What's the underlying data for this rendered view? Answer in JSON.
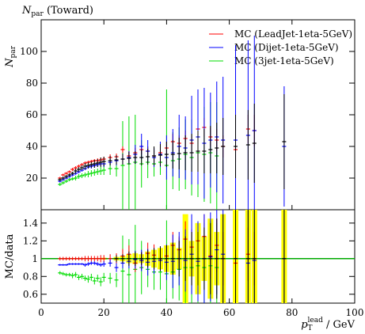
{
  "plot_title": "N",
  "plot_title_sub": "par",
  "plot_title_suffix": " (Toward)",
  "main_ylabel": "N",
  "main_ylabel_sub": "par",
  "ratio_ylabel": "MC/data",
  "xlabel_p": "p",
  "xlabel_sub": "T",
  "xlabel_sup": "lead",
  "xlabel_unit": " / GeV",
  "colors": {
    "data": "#000000",
    "leadjet": "#ff0000",
    "dijet": "#0000ff",
    "threejet": "#00dd00",
    "band": "#ffff00",
    "ratio_ref": "#00aa00"
  },
  "chart_data": [
    {
      "type": "scatter",
      "name": "main",
      "xlim": [
        0,
        100
      ],
      "ylim": [
        0,
        120
      ],
      "x_ticks": [
        0,
        20,
        40,
        60,
        80,
        100
      ],
      "y_ticks": [
        20,
        40,
        60,
        80,
        100
      ],
      "y_tick_labels": [
        "20",
        "40",
        "60",
        "80",
        "100"
      ],
      "legend_position": "top-right",
      "legend": [
        {
          "key": "leadjet",
          "label": "MC (LeadJet-1eta-5GeV)"
        },
        {
          "key": "dijet",
          "label": "MC (Dijet-1eta-5GeV)"
        },
        {
          "key": "threejet",
          "label": "MC (3jet-1eta-5GeV)"
        }
      ],
      "series": [
        {
          "key": "data",
          "x": [
            6,
            7,
            8,
            9,
            10,
            11,
            12,
            13,
            14,
            15,
            16,
            17,
            18,
            19,
            20,
            22,
            24,
            26,
            28,
            30,
            32,
            34,
            36,
            38,
            40,
            42,
            44,
            46,
            48,
            50,
            52,
            54,
            56,
            58,
            62,
            66,
            68,
            77.5
          ],
          "y": [
            19,
            20,
            21,
            22,
            23,
            24.5,
            25.5,
            26.5,
            27.5,
            28,
            28.5,
            29,
            29.5,
            30,
            30.5,
            31,
            31.5,
            32,
            32.5,
            33,
            33,
            33.5,
            34,
            34.5,
            35,
            35,
            35.5,
            36,
            36,
            37,
            37,
            38,
            39,
            40,
            40,
            41,
            42,
            43
          ],
          "err": [
            1,
            1,
            1,
            1,
            1,
            1.5,
            1.5,
            1.5,
            2,
            2,
            2,
            2.5,
            2.5,
            3,
            3,
            3,
            3,
            3.5,
            4,
            4,
            5,
            5,
            6,
            7,
            8,
            9,
            10,
            11,
            12,
            13,
            14,
            15,
            16,
            18,
            20,
            22,
            25,
            30
          ]
        },
        {
          "key": "leadjet",
          "x": [
            6,
            7,
            8,
            9,
            10,
            11,
            12,
            13,
            14,
            15,
            16,
            17,
            18,
            19,
            20,
            22,
            24,
            26,
            28,
            30,
            32,
            34,
            36,
            38,
            40,
            42,
            44,
            46,
            48,
            50,
            52,
            54,
            56,
            58,
            62,
            66,
            68
          ],
          "y": [
            20,
            22,
            23,
            24,
            25.5,
            26.5,
            27.5,
            28.5,
            29.5,
            30,
            30.5,
            31,
            31,
            31.5,
            32,
            33,
            33.5,
            38,
            34,
            36,
            38,
            37,
            34,
            36,
            39,
            43,
            42,
            45,
            42,
            51,
            52,
            46,
            44,
            40,
            38,
            51,
            50
          ],
          "err": [
            0.8,
            0.8,
            0.8,
            0.8,
            1,
            1,
            1,
            1,
            1,
            1,
            1,
            1,
            1.5,
            1.5,
            1.5,
            2,
            2,
            2,
            3,
            3,
            3,
            3,
            4,
            4,
            4,
            5,
            5,
            5,
            5,
            6,
            6,
            6,
            7,
            7,
            8,
            9,
            10
          ]
        },
        {
          "key": "dijet",
          "x": [
            6,
            7,
            8,
            9,
            10,
            11,
            12,
            13,
            14,
            15,
            16,
            17,
            18,
            19,
            20,
            22,
            24,
            26,
            28,
            30,
            32,
            34,
            36,
            38,
            40,
            42,
            44,
            46,
            48,
            50,
            52,
            54,
            56,
            58,
            62,
            66,
            68,
            77.5
          ],
          "y": [
            18,
            19,
            20,
            21,
            22,
            23,
            24,
            25,
            26,
            27,
            27.5,
            28,
            28.5,
            29,
            29,
            30,
            31,
            32,
            33,
            35,
            40,
            37,
            33,
            35,
            33,
            36,
            40,
            39,
            44,
            46,
            42,
            44,
            46,
            44,
            44,
            47,
            50,
            40
          ],
          "err": [
            0.8,
            0.8,
            0.8,
            0.8,
            1,
            1,
            1,
            1,
            1,
            1,
            1.5,
            1.5,
            1.5,
            1.5,
            2,
            2,
            3,
            3,
            4,
            6,
            8,
            7,
            6,
            8,
            14,
            15,
            20,
            20,
            28,
            30,
            35,
            30,
            35,
            40,
            60,
            60,
            60,
            38
          ]
        },
        {
          "key": "threejet",
          "x": [
            6,
            7,
            8,
            9,
            10,
            11,
            12,
            13,
            14,
            15,
            16,
            17,
            18,
            19,
            20,
            22,
            24,
            26,
            28,
            30,
            32,
            34,
            36,
            38,
            40,
            42,
            44,
            46,
            48,
            50,
            52,
            54,
            56
          ],
          "y": [
            16,
            17,
            18,
            19,
            19.5,
            20,
            21,
            21.5,
            22,
            22.5,
            23,
            23.5,
            24,
            24.5,
            25,
            26,
            26,
            28,
            29,
            30,
            29,
            30,
            29,
            30,
            28,
            31,
            32,
            35,
            33,
            36,
            35,
            36,
            34
          ],
          "err": [
            1,
            1,
            1,
            1,
            1,
            1.5,
            1.5,
            1.5,
            1.5,
            2,
            2,
            2,
            2,
            2.5,
            3,
            4,
            5,
            28,
            30,
            30,
            15,
            10,
            8,
            8,
            48,
            18,
            20,
            22,
            24,
            28,
            30,
            32,
            34
          ]
        }
      ]
    },
    {
      "type": "scatter",
      "name": "ratio",
      "xlim": [
        0,
        100
      ],
      "ylim": [
        0.5,
        1.55
      ],
      "x_ticks": [
        0,
        20,
        40,
        60,
        80,
        100
      ],
      "y_ticks": [
        0.6,
        0.8,
        1.0,
        1.2,
        1.4
      ],
      "y_tick_labels": [
        "0.6",
        "0.8",
        "1",
        "1.2",
        "1.4"
      ],
      "x_tick_labels": [
        "0",
        "20",
        "40",
        "60",
        "80",
        "100"
      ],
      "reference_line": 1.0,
      "band": {
        "x": [
          20,
          24,
          26,
          28,
          30,
          32,
          34,
          36,
          38,
          40,
          42,
          44,
          46,
          48,
          50,
          52,
          54,
          56,
          58,
          62,
          66,
          68,
          77.5
        ],
        "half_width": [
          0.01,
          0.02,
          0.03,
          0.05,
          0.06,
          0.05,
          0.08,
          0.1,
          0.12,
          0.15,
          0.18,
          0.12,
          0.5,
          0.2,
          0.4,
          0.25,
          0.45,
          0.3,
          0.5,
          0.6,
          0.6,
          0.6,
          0.6
        ]
      },
      "series": [
        {
          "key": "data",
          "x": [
            24,
            26,
            28,
            30,
            32,
            34,
            36,
            38,
            40,
            42,
            44,
            46,
            48,
            50,
            52,
            54,
            56,
            58,
            62,
            66,
            68,
            77.5
          ],
          "y": [
            1,
            1,
            1,
            1,
            1,
            1,
            1,
            1,
            1,
            1,
            1,
            1,
            1,
            1,
            1,
            1,
            1,
            1,
            1,
            1,
            1,
            1
          ],
          "err": [
            0.04,
            0.05,
            0.08,
            0.08,
            0.07,
            0.1,
            0.12,
            0.14,
            0.15,
            0.18,
            0.2,
            0.25,
            0.3,
            0.3,
            0.35,
            0.4,
            0.45,
            0.5,
            0.6,
            0.6,
            0.6,
            0.6
          ]
        },
        {
          "key": "leadjet",
          "x": [
            6,
            7,
            8,
            9,
            10,
            11,
            12,
            13,
            14,
            15,
            16,
            17,
            18,
            19,
            20,
            22,
            24,
            26,
            28,
            30,
            32,
            34,
            36,
            38,
            40,
            42,
            44,
            46,
            48,
            50,
            52,
            54,
            56,
            58,
            62,
            66,
            68
          ],
          "y": [
            1,
            1,
            1,
            1,
            1,
            1,
            1,
            1,
            1,
            1,
            1,
            1,
            1,
            1,
            1,
            1,
            1,
            1.03,
            1.05,
            0.95,
            0.98,
            1.06,
            1.04,
            1.0,
            1.03,
            1.15,
            1.1,
            1.22,
            1.13,
            1.2,
            1.25,
            1.03,
            1.15,
            1.0,
            0.95,
            1.05,
            1.0
          ],
          "err": [
            0.02,
            0.02,
            0.02,
            0.02,
            0.02,
            0.02,
            0.02,
            0.02,
            0.03,
            0.03,
            0.03,
            0.03,
            0.03,
            0.04,
            0.04,
            0.05,
            0.06,
            0.08,
            0.1,
            0.1,
            0.1,
            0.12,
            0.12,
            0.12,
            0.12,
            0.15,
            0.15,
            0.2,
            0.2,
            0.2,
            0.25,
            0.25,
            0.3,
            0.3,
            0.3,
            0.3,
            0.3
          ]
        },
        {
          "key": "dijet",
          "x": [
            6,
            7,
            8,
            9,
            10,
            11,
            12,
            13,
            14,
            15,
            16,
            17,
            18,
            19,
            20,
            22,
            24,
            26,
            28,
            30,
            32,
            34,
            36,
            38,
            40,
            42,
            44,
            46,
            48,
            50,
            52,
            54,
            56,
            58,
            62,
            66,
            68,
            77.5
          ],
          "y": [
            0.93,
            0.93,
            0.93,
            0.94,
            0.94,
            0.94,
            0.94,
            0.94,
            0.93,
            0.94,
            0.95,
            0.95,
            0.94,
            0.93,
            0.94,
            0.95,
            0.9,
            0.95,
            0.97,
            0.99,
            0.98,
            0.96,
            0.97,
            0.98,
            0.96,
            0.97,
            1.0,
            0.98,
            1.05,
            0.97,
            1.0,
            1.02,
            1.1,
            1.05,
            1.0,
            0.95,
            0.98,
            1.0
          ],
          "err": [
            0.01,
            0.01,
            0.01,
            0.01,
            0.01,
            0.01,
            0.01,
            0.01,
            0.02,
            0.02,
            0.02,
            0.02,
            0.02,
            0.02,
            0.03,
            0.04,
            0.05,
            0.06,
            0.08,
            0.1,
            0.12,
            0.15,
            0.14,
            0.12,
            0.2,
            0.3,
            0.3,
            0.35,
            0.45,
            0.45,
            0.5,
            0.5,
            0.5,
            0.6,
            0.6,
            0.6,
            0.6,
            0.6
          ]
        },
        {
          "key": "threejet",
          "x": [
            6,
            7,
            8,
            9,
            10,
            11,
            12,
            13,
            14,
            15,
            16,
            17,
            18,
            19,
            20,
            22,
            24,
            26,
            28,
            30,
            32,
            34,
            36,
            38,
            40,
            42,
            44,
            46,
            48,
            50,
            52,
            54,
            56
          ],
          "y": [
            0.84,
            0.83,
            0.82,
            0.82,
            0.81,
            0.82,
            0.79,
            0.8,
            0.78,
            0.77,
            0.79,
            0.75,
            0.78,
            0.74,
            0.79,
            0.78,
            0.76,
            0.86,
            0.82,
            0.88,
            0.9,
            0.88,
            0.85,
            0.85,
            0.83,
            0.85,
            0.88,
            0.9,
            0.9,
            0.92,
            0.9,
            0.92,
            0.9
          ],
          "err": [
            0.02,
            0.02,
            0.02,
            0.02,
            0.03,
            0.03,
            0.03,
            0.03,
            0.03,
            0.04,
            0.04,
            0.04,
            0.04,
            0.05,
            0.05,
            0.06,
            0.08,
            0.4,
            0.4,
            0.5,
            0.3,
            0.2,
            0.2,
            0.2,
            0.6,
            0.3,
            0.35,
            0.4,
            0.4,
            0.5,
            0.5,
            0.5,
            0.5
          ]
        }
      ]
    }
  ]
}
